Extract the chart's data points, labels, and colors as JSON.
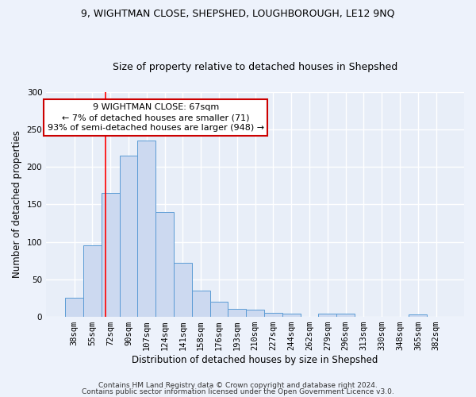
{
  "title1": "9, WIGHTMAN CLOSE, SHEPSHED, LOUGHBOROUGH, LE12 9NQ",
  "title2": "Size of property relative to detached houses in Shepshed",
  "xlabel": "Distribution of detached houses by size in Shepshed",
  "ylabel": "Number of detached properties",
  "bar_labels": [
    "38sqm",
    "55sqm",
    "72sqm",
    "90sqm",
    "107sqm",
    "124sqm",
    "141sqm",
    "158sqm",
    "176sqm",
    "193sqm",
    "210sqm",
    "227sqm",
    "244sqm",
    "262sqm",
    "279sqm",
    "296sqm",
    "313sqm",
    "330sqm",
    "348sqm",
    "365sqm",
    "382sqm"
  ],
  "bar_heights": [
    25,
    95,
    165,
    215,
    235,
    140,
    72,
    35,
    20,
    11,
    10,
    5,
    4,
    0,
    4,
    4,
    0,
    0,
    0,
    3,
    0
  ],
  "bar_color": "#ccd9f0",
  "bar_edge_color": "#5b9bd5",
  "red_line_x": 1.72,
  "annotation_text": "9 WIGHTMAN CLOSE: 67sqm\n← 7% of detached houses are smaller (71)\n93% of semi-detached houses are larger (948) →",
  "annotation_box_facecolor": "#ffffff",
  "annotation_box_edgecolor": "#cc0000",
  "ylim": [
    0,
    300
  ],
  "yticks": [
    0,
    50,
    100,
    150,
    200,
    250,
    300
  ],
  "footer1": "Contains HM Land Registry data © Crown copyright and database right 2024.",
  "footer2": "Contains public sector information licensed under the Open Government Licence v3.0.",
  "fig_facecolor": "#edf2fb",
  "ax_facecolor": "#e8eef8",
  "grid_color": "#ffffff",
  "title1_fontsize": 9,
  "title2_fontsize": 9,
  "axis_label_fontsize": 8.5,
  "tick_fontsize": 7.5,
  "annotation_fontsize": 8,
  "footer_fontsize": 6.5
}
